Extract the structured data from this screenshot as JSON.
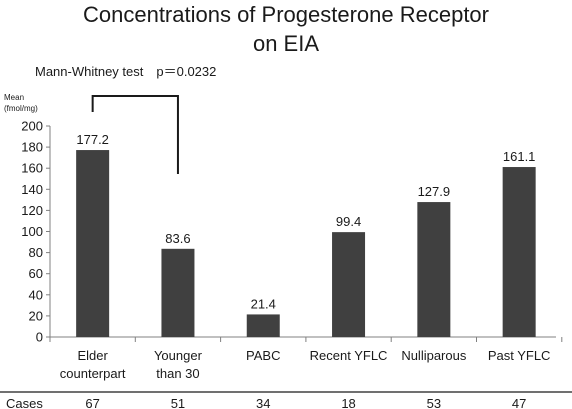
{
  "chart_data": {
    "type": "bar",
    "title": [
      "Concentrations of Progesterone Receptor",
      "on EIA"
    ],
    "test_label": "Mann-Whitney test　p＝0.0232",
    "ylabel": [
      "Mean",
      "(fmol/mg)"
    ],
    "ylim": [
      0,
      200
    ],
    "yticks": [
      0,
      20,
      40,
      60,
      80,
      100,
      120,
      140,
      160,
      180,
      200
    ],
    "categories": [
      [
        "Elder",
        "counterpart"
      ],
      [
        "Younger",
        "than 30"
      ],
      [
        "PABC"
      ],
      [
        "Recent YFLC"
      ],
      [
        "Nulliparous"
      ],
      [
        "Past YFLC"
      ]
    ],
    "values": [
      177.2,
      83.6,
      21.4,
      99.4,
      127.9,
      161.1
    ],
    "value_labels": [
      "177.2",
      "83.6",
      "21.4",
      "99.4",
      "127.9",
      "161.1"
    ],
    "bar_color": "#404040",
    "grid": false,
    "cases_label": "Cases",
    "cases": [
      "67",
      "51",
      "34",
      "18",
      "53",
      "47"
    ],
    "comparison": {
      "from_index": 0,
      "to_index": 1
    }
  }
}
